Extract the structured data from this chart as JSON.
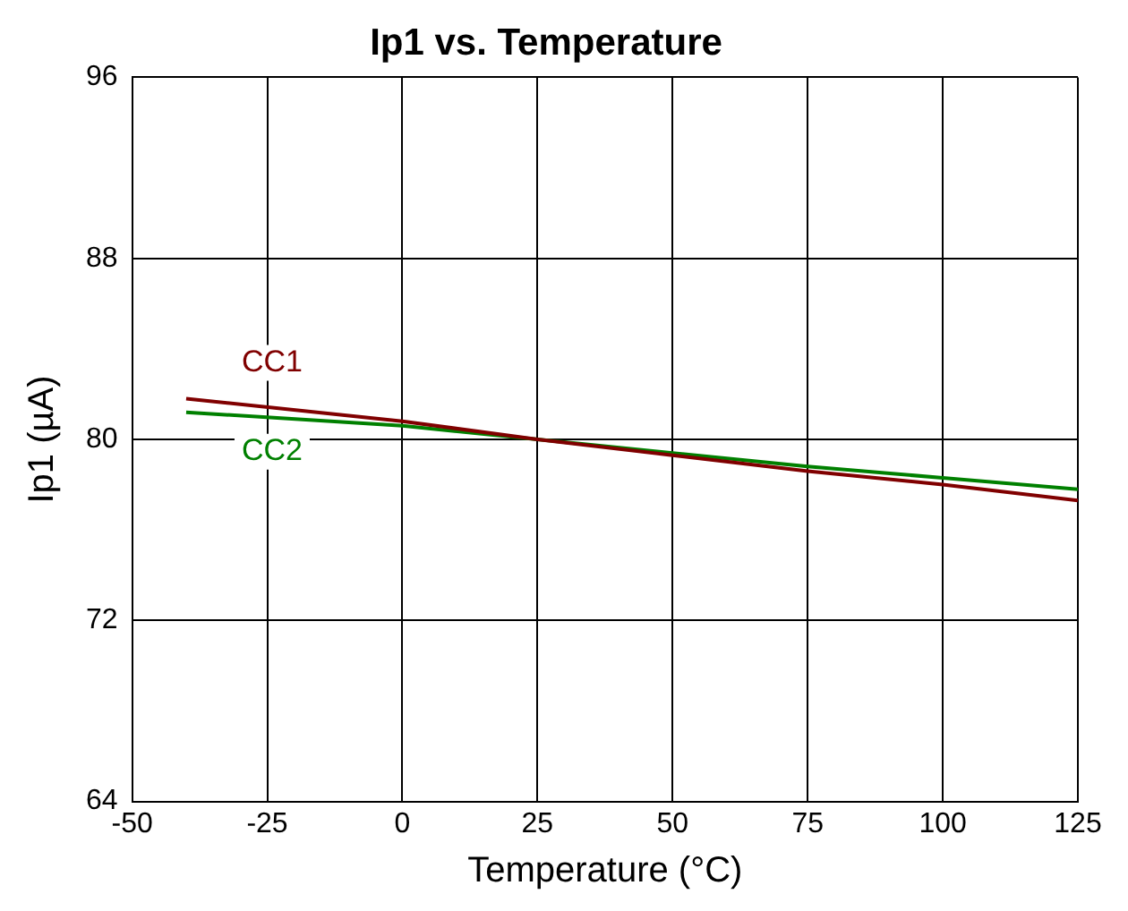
{
  "chart_data": {
    "type": "line",
    "title": "Ip1 vs. Temperature",
    "xlabel": "Temperature (°C)",
    "ylabel": "Ip1 (µA)",
    "x": [
      -40,
      0,
      25,
      50,
      75,
      100,
      125
    ],
    "series": [
      {
        "name": "CC1",
        "color": "#800000",
        "values": [
          81.8,
          80.8,
          80.0,
          79.3,
          78.6,
          78.0,
          77.3
        ]
      },
      {
        "name": "CC2",
        "color": "#008000",
        "values": [
          81.2,
          80.6,
          80.0,
          79.4,
          78.8,
          78.3,
          77.8
        ]
      }
    ],
    "xlim": [
      -50,
      125
    ],
    "xticks": [
      -50,
      -25,
      0,
      25,
      50,
      75,
      100,
      125
    ],
    "ylim": [
      64,
      96
    ],
    "yticks": [
      64,
      72,
      80,
      88,
      96
    ],
    "grid": true,
    "legend": false,
    "marker": "none",
    "line_style": "solid"
  }
}
